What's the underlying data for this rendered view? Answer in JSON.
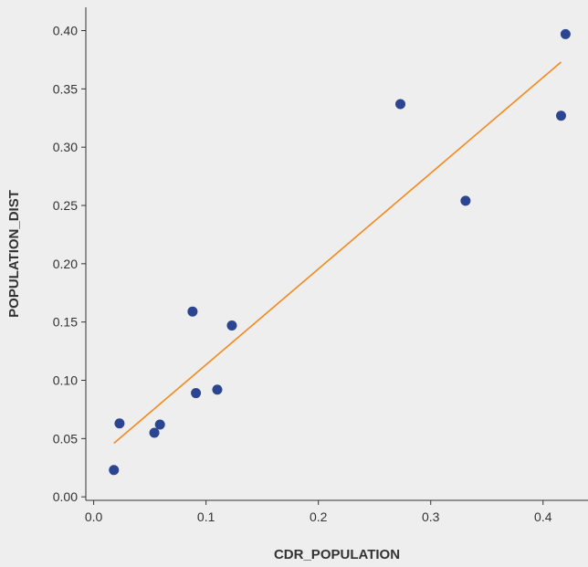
{
  "chart_data": {
    "type": "scatter",
    "title": "",
    "xlabel": "CDR_POPULATION",
    "ylabel": "POPULATION_DIST",
    "xlim": [
      -0.007,
      0.44
    ],
    "ylim": [
      -0.003,
      0.42
    ],
    "x_ticks": [
      0.0,
      0.1,
      0.2,
      0.3,
      0.4
    ],
    "x_tick_labels": [
      "0.0",
      "0.1",
      "0.2",
      "0.3",
      "0.4"
    ],
    "y_ticks": [
      0.0,
      0.05,
      0.1,
      0.15,
      0.2,
      0.25,
      0.3,
      0.35,
      0.4
    ],
    "y_tick_labels": [
      "0.00",
      "0.05",
      "0.10",
      "0.15",
      "0.20",
      "0.25",
      "0.30",
      "0.35",
      "0.40"
    ],
    "grid": false,
    "series": [
      {
        "type": "scatter",
        "color": "#2b4591",
        "points": [
          {
            "x": 0.018,
            "y": 0.023
          },
          {
            "x": 0.023,
            "y": 0.063
          },
          {
            "x": 0.054,
            "y": 0.055
          },
          {
            "x": 0.059,
            "y": 0.062
          },
          {
            "x": 0.088,
            "y": 0.159
          },
          {
            "x": 0.091,
            "y": 0.089
          },
          {
            "x": 0.11,
            "y": 0.092
          },
          {
            "x": 0.123,
            "y": 0.147
          },
          {
            "x": 0.273,
            "y": 0.337
          },
          {
            "x": 0.331,
            "y": 0.254
          },
          {
            "x": 0.416,
            "y": 0.327
          },
          {
            "x": 0.42,
            "y": 0.397
          }
        ]
      },
      {
        "type": "line",
        "color": "#f28a1e",
        "points": [
          {
            "x": 0.018,
            "y": 0.046
          },
          {
            "x": 0.416,
            "y": 0.373
          }
        ]
      }
    ]
  }
}
